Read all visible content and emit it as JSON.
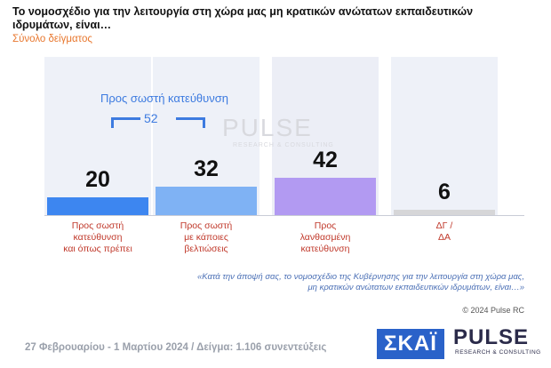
{
  "header": {
    "title": "Το νομοσχέδιο για την λειτουργία στη χώρα μας μη κρατικών ανώτατων εκπαιδευτικών ιδρυμάτων, είναι…",
    "subtitle": "Σύνολο δείγματος"
  },
  "chart_data": {
    "type": "bar",
    "categories": [
      "Προς σωστή κατεύθυνση και όπως πρέπει",
      "Προς σωστή με κάποιες βελτιώσεις",
      "Προς λανθασμένη κατεύθυνση",
      "ΔΓ / ΔΑ"
    ],
    "values": [
      20,
      32,
      42,
      6
    ],
    "value_labels": [
      "20",
      "32",
      "42",
      "6"
    ],
    "ylim": [
      0,
      100
    ],
    "colors": [
      "#3d86f0",
      "#7fb2f4",
      "#b29af2",
      "#d6d6d8"
    ],
    "grid": false,
    "group": {
      "label": "Προς σωστή κατεύθυνση",
      "value": "52"
    }
  },
  "cat_lines": [
    [
      "Προς σωστή",
      "κατεύθυνση",
      "και όπως πρέπει"
    ],
    [
      "Προς σωστή",
      "με κάποιες",
      "βελτιώσεις"
    ],
    [
      "Προς",
      "λανθασμένη",
      "κατεύθυνση"
    ],
    [
      "ΔΓ /",
      "ΔΑ"
    ]
  ],
  "footnote": {
    "line1": "«Κατά την άποψή σας, το νομοσχέδιο της Κυβέρνησης για την λειτουργία στη χώρα μας,",
    "line2": "μη κρατικών ανώτατων εκπαιδευτικών ιδρυμάτων, είναι…»"
  },
  "copyright": "© 2024 Pulse RC",
  "bottom_text": "27 Φεβρουαρίου - 1 Μαρτίου 2024  /  Δείγμα:  1.106 συνεντεύξεις",
  "logos": {
    "skai": "ΣΚΑΪ",
    "pulse": "PULSE",
    "pulse_sub": "RESEARCH & CONSULTING"
  },
  "watermark": {
    "text": "PULSE",
    "sub": "RESEARCH & CONSULTING"
  }
}
